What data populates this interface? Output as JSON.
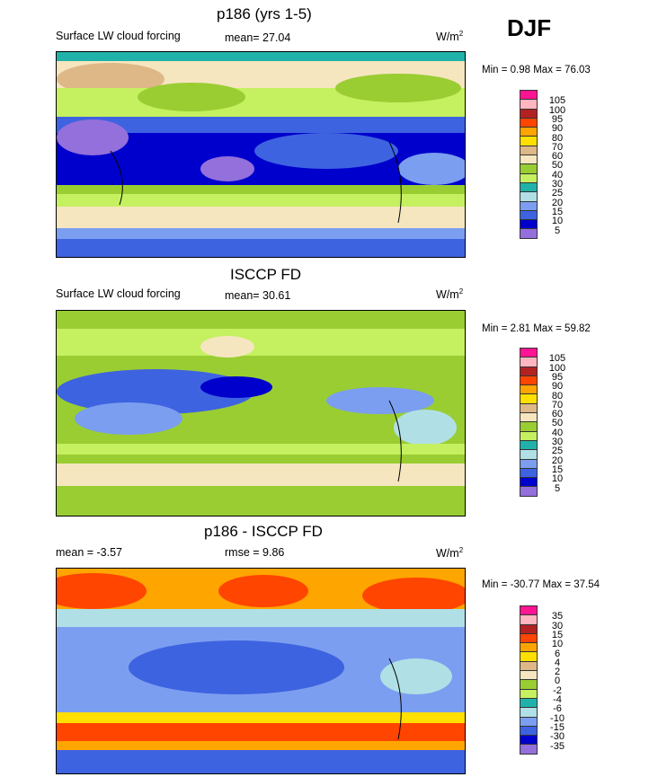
{
  "season": "DJF",
  "palette_abs": [
    "#FF1493",
    "#FFB6C1",
    "#B22222",
    "#FF4500",
    "#FFA500",
    "#FFE000",
    "#DEB887",
    "#F5E6C0",
    "#9ACD32",
    "#C5F060",
    "#20B2AA",
    "#B0E0E6",
    "#7B9EF0",
    "#3E63E0",
    "#0000CD",
    "#9370DB"
  ],
  "panels": [
    {
      "title": "p186 (yrs 1-5)",
      "left": "Surface LW cloud forcing",
      "center": "mean=  27.04",
      "units": "W/m",
      "units_sup": "2",
      "minmax": "Min =   0.98 Max =  76.03",
      "levels": [
        "105",
        "100",
        "95",
        "90",
        "80",
        "70",
        "60",
        "50",
        "40",
        "30",
        "25",
        "20",
        "15",
        "10",
        "5"
      ]
    },
    {
      "title": "ISCCP FD",
      "left": "Surface LW cloud forcing",
      "center": "mean=  30.61",
      "units": "W/m",
      "units_sup": "2",
      "minmax": "Min =   2.81 Max =  59.82",
      "levels": [
        "105",
        "100",
        "95",
        "90",
        "80",
        "70",
        "60",
        "50",
        "40",
        "30",
        "25",
        "20",
        "15",
        "10",
        "5"
      ]
    },
    {
      "title": "p186 - ISCCP FD",
      "left": "mean =  -3.57",
      "center": "rmse =    9.86",
      "units": "W/m",
      "units_sup": "2",
      "minmax": "Min = -30.77 Max =  37.54",
      "levels": [
        "35",
        "30",
        "15",
        "10",
        "6",
        "4",
        "2",
        "0",
        "-2",
        "-4",
        "-6",
        "-10",
        "-15",
        "-30",
        "-35"
      ]
    }
  ]
}
